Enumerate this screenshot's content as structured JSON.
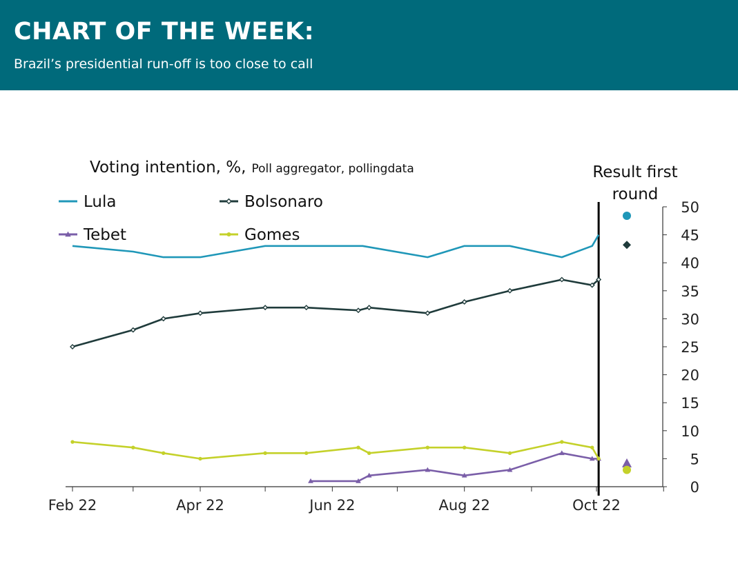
{
  "header": {
    "title": "CHART OF THE WEEK:",
    "subtitle": "Brazil’s presidential run-off is too close to call"
  },
  "chart_data": {
    "type": "line",
    "title": "Voting intention, %,",
    "subtitle": "Poll aggregator, pollingdata",
    "xlabel": "",
    "ylabel": "",
    "x_ticks": [
      "Feb 22",
      "Apr 22",
      "Jun 22",
      "Aug 22",
      "Oct 22"
    ],
    "x_tick_dates": [
      "2022-02-01",
      "2022-04-01",
      "2022-06-01",
      "2022-08-01",
      "2022-10-01"
    ],
    "x_range": [
      "2022-02-01",
      "2022-11-01"
    ],
    "ylim": [
      0,
      50
    ],
    "y_ticks": [
      "0",
      "5",
      "10",
      "15",
      "20",
      "25",
      "30",
      "35",
      "40",
      "45",
      "50"
    ],
    "y_axis_position": "right",
    "grid": false,
    "legend_position": "top-left",
    "marker_line_label": "Result first round",
    "marker_line_date": "2022-10-02",
    "series": [
      {
        "name": "Lula",
        "color": "#1f97b8",
        "marker": "none",
        "points": [
          [
            "2022-02-01",
            43
          ],
          [
            "2022-03-01",
            42
          ],
          [
            "2022-03-15",
            41
          ],
          [
            "2022-04-01",
            41
          ],
          [
            "2022-05-01",
            43
          ],
          [
            "2022-05-20",
            43
          ],
          [
            "2022-06-15",
            43
          ],
          [
            "2022-07-15",
            41
          ],
          [
            "2022-08-01",
            43
          ],
          [
            "2022-08-22",
            43
          ],
          [
            "2022-09-15",
            41
          ],
          [
            "2022-09-29",
            43
          ],
          [
            "2022-10-02",
            45
          ]
        ],
        "result": 48.4
      },
      {
        "name": "Bolsonaro",
        "color": "#1f3b3b",
        "marker": "diamond",
        "points": [
          [
            "2022-02-01",
            25
          ],
          [
            "2022-03-01",
            28
          ],
          [
            "2022-03-15",
            30
          ],
          [
            "2022-04-01",
            31
          ],
          [
            "2022-05-01",
            32
          ],
          [
            "2022-05-20",
            32
          ],
          [
            "2022-06-13",
            31.5
          ],
          [
            "2022-06-18",
            32
          ],
          [
            "2022-07-15",
            31
          ],
          [
            "2022-08-01",
            33
          ],
          [
            "2022-08-22",
            35
          ],
          [
            "2022-09-15",
            37
          ],
          [
            "2022-09-29",
            36
          ],
          [
            "2022-10-02",
            37
          ]
        ],
        "result": 43.2
      },
      {
        "name": "Tebet",
        "color": "#7a5ea8",
        "marker": "triangle",
        "points": [
          [
            "2022-05-22",
            1
          ],
          [
            "2022-06-13",
            1
          ],
          [
            "2022-06-18",
            2
          ],
          [
            "2022-07-15",
            3
          ],
          [
            "2022-08-01",
            2
          ],
          [
            "2022-08-22",
            3
          ],
          [
            "2022-09-15",
            6
          ],
          [
            "2022-09-29",
            5
          ],
          [
            "2022-10-02",
            5
          ]
        ],
        "result": 4.2
      },
      {
        "name": "Gomes",
        "color": "#c4d12a",
        "marker": "circle",
        "points": [
          [
            "2022-02-01",
            8
          ],
          [
            "2022-03-01",
            7
          ],
          [
            "2022-03-15",
            6
          ],
          [
            "2022-04-01",
            5
          ],
          [
            "2022-05-01",
            6
          ],
          [
            "2022-05-20",
            6
          ],
          [
            "2022-06-13",
            7
          ],
          [
            "2022-06-18",
            6
          ],
          [
            "2022-07-15",
            7
          ],
          [
            "2022-08-01",
            7
          ],
          [
            "2022-08-22",
            6
          ],
          [
            "2022-09-15",
            8
          ],
          [
            "2022-09-29",
            7
          ],
          [
            "2022-10-02",
            5
          ]
        ],
        "result": 3.0
      }
    ]
  }
}
